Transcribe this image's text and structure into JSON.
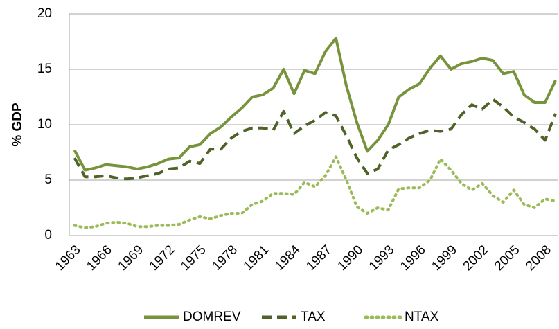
{
  "chart_data": {
    "type": "line",
    "y_label": "% GDP",
    "x": [
      1963,
      1964,
      1965,
      1966,
      1967,
      1968,
      1969,
      1970,
      1971,
      1972,
      1973,
      1974,
      1975,
      1976,
      1977,
      1978,
      1979,
      1980,
      1981,
      1982,
      1983,
      1984,
      1985,
      1986,
      1987,
      1988,
      1989,
      1990,
      1991,
      1992,
      1993,
      1994,
      1995,
      1996,
      1997,
      1998,
      1999,
      2000,
      2001,
      2002,
      2003,
      2004,
      2005,
      2006,
      2007,
      2008,
      2009
    ],
    "xlim": [
      1962.5,
      2009.2
    ],
    "xticks": [
      1963,
      1966,
      1969,
      1972,
      1975,
      1978,
      1981,
      1984,
      1987,
      1990,
      1993,
      1996,
      1999,
      2002,
      2005,
      2008
    ],
    "ylim": [
      0,
      20
    ],
    "yticks": [
      0,
      5,
      10,
      15,
      20
    ],
    "grid": true,
    "legend": "bottom",
    "series": [
      {
        "name": "DOMREV",
        "color": "#77933c",
        "dash": "solid",
        "values": [
          7.7,
          5.9,
          6.1,
          6.4,
          6.3,
          6.2,
          6.0,
          6.2,
          6.5,
          6.9,
          7.0,
          8.0,
          8.2,
          9.2,
          9.8,
          10.7,
          11.5,
          12.5,
          12.7,
          13.3,
          15.0,
          12.8,
          14.9,
          14.6,
          16.6,
          17.8,
          13.5,
          10.2,
          7.6,
          8.6,
          10.0,
          12.5,
          13.2,
          13.7,
          15.1,
          16.2,
          15.0,
          15.5,
          15.7,
          16.0,
          15.8,
          14.6,
          14.8,
          12.7,
          12.0,
          12.0,
          14.0
        ]
      },
      {
        "name": "TAX",
        "color": "#4f6228",
        "dash": "dashed",
        "values": [
          7.0,
          5.3,
          5.3,
          5.4,
          5.2,
          5.1,
          5.2,
          5.4,
          5.6,
          6.0,
          6.1,
          6.7,
          6.5,
          7.8,
          7.8,
          8.8,
          9.4,
          9.7,
          9.7,
          9.5,
          11.2,
          9.2,
          9.9,
          10.4,
          11.1,
          10.8,
          9.0,
          7.0,
          5.6,
          6.0,
          7.7,
          8.2,
          8.8,
          9.2,
          9.5,
          9.4,
          9.6,
          10.9,
          11.8,
          11.4,
          12.3,
          11.6,
          10.7,
          10.2,
          9.6,
          8.6,
          11.0
        ]
      },
      {
        "name": "NTAX",
        "color": "#9bbb59",
        "dash": "dotted",
        "values": [
          0.9,
          0.7,
          0.8,
          1.1,
          1.2,
          1.1,
          0.8,
          0.8,
          0.9,
          0.9,
          1.0,
          1.4,
          1.7,
          1.5,
          1.8,
          2.0,
          2.0,
          2.8,
          3.1,
          3.8,
          3.8,
          3.7,
          4.8,
          4.4,
          5.4,
          7.1,
          5.0,
          2.6,
          2.0,
          2.5,
          2.3,
          4.2,
          4.3,
          4.3,
          5.0,
          6.9,
          5.9,
          4.7,
          4.1,
          4.7,
          3.6,
          3.0,
          4.1,
          2.8,
          2.5,
          3.3,
          3.1
        ]
      }
    ]
  }
}
